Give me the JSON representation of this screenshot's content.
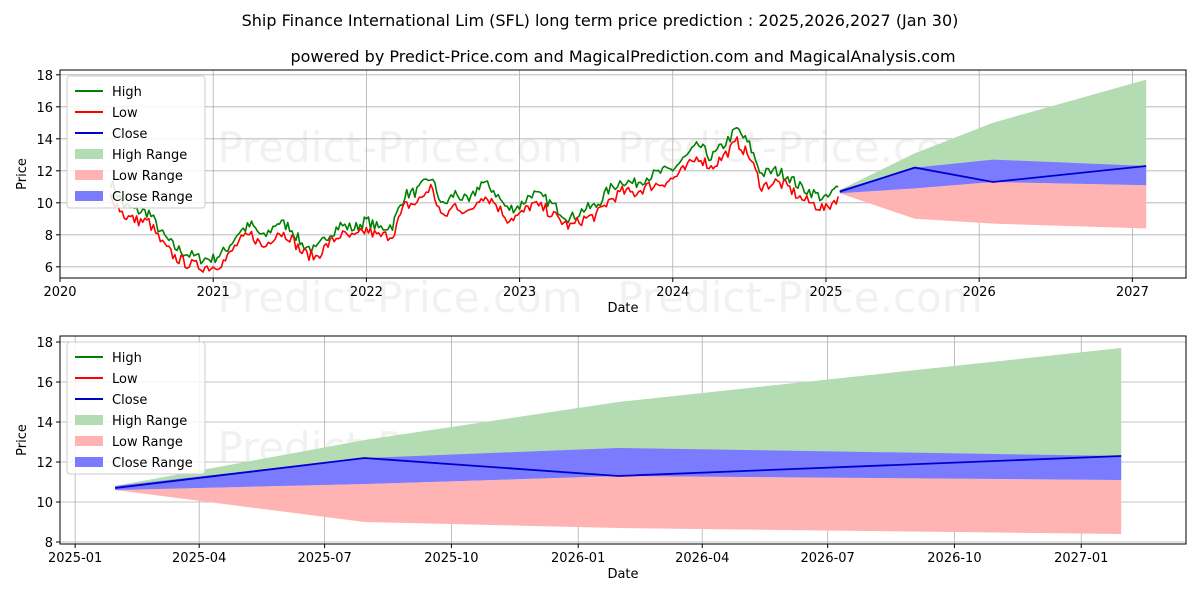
{
  "header": {
    "title": "Ship Finance International Lim (SFL) long term price prediction : 2025,2026,2027 (Jan 30)",
    "subtitle": "powered by Predict-Price.com and MagicalPrediction.com and MagicalAnalysis.com"
  },
  "watermark": "Predict-Price.com",
  "colors": {
    "high": "#008000",
    "low": "#ff0000",
    "close": "#0000cc",
    "high_range": "#b3dcb3",
    "low_range": "#ffb3b3",
    "close_range": "#7b7bff"
  },
  "legend": {
    "entries": [
      "High",
      "Low",
      "Close",
      "High Range",
      "Low Range",
      "Close Range"
    ],
    "placement": "top-left"
  },
  "chart_data": [
    {
      "type": "line",
      "title": "",
      "xlabel": "Date",
      "ylabel": "Price",
      "grid": true,
      "xlim": [
        2020.0,
        2027.35
      ],
      "ylim": [
        5.3,
        18.3
      ],
      "x_ticks": [
        2020,
        2021,
        2022,
        2023,
        2024,
        2025,
        2026,
        2027
      ],
      "x_tick_labels": [
        "2020",
        "2021",
        "2022",
        "2023",
        "2024",
        "2025",
        "2026",
        "2027"
      ],
      "y_ticks": [
        6,
        8,
        10,
        12,
        14,
        16,
        18
      ],
      "y_tick_labels": [
        "6",
        "8",
        "10",
        "12",
        "14",
        "16",
        "18"
      ],
      "history": {
        "x": [
          2020.33,
          2020.42,
          2020.5,
          2020.58,
          2020.67,
          2020.75,
          2020.83,
          2020.92,
          2021.0,
          2021.08,
          2021.17,
          2021.25,
          2021.33,
          2021.42,
          2021.5,
          2021.58,
          2021.67,
          2021.75,
          2021.83,
          2021.92,
          2022.0,
          2022.08,
          2022.17,
          2022.25,
          2022.33,
          2022.42,
          2022.5,
          2022.58,
          2022.67,
          2022.75,
          2022.83,
          2022.92,
          2023.0,
          2023.08,
          2023.17,
          2023.25,
          2023.33,
          2023.42,
          2023.5,
          2023.58,
          2023.67,
          2023.75,
          2023.83,
          2023.92,
          2024.0,
          2024.08,
          2024.17,
          2024.25,
          2024.33,
          2024.42,
          2024.5,
          2024.58,
          2024.67,
          2024.75,
          2024.83,
          2024.92,
          2025.0,
          2025.08
        ],
        "high": [
          11.3,
          9.8,
          9.5,
          9.4,
          8.0,
          7.2,
          6.8,
          6.5,
          6.5,
          7.0,
          8.2,
          8.6,
          7.8,
          8.8,
          8.5,
          7.4,
          7.0,
          8.0,
          8.6,
          8.4,
          8.9,
          8.4,
          8.6,
          10.5,
          10.7,
          11.6,
          9.8,
          10.6,
          10.0,
          11.3,
          10.8,
          9.6,
          9.8,
          10.6,
          10.2,
          9.6,
          9.0,
          9.6,
          9.8,
          10.8,
          11.4,
          11.2,
          11.6,
          11.9,
          12.1,
          12.8,
          13.6,
          12.8,
          13.6,
          14.6,
          13.6,
          11.8,
          12.0,
          11.7,
          11.0,
          10.6,
          10.2,
          11.0
        ],
        "low": [
          10.5,
          9.2,
          8.9,
          8.8,
          7.4,
          6.6,
          6.2,
          6.0,
          6.0,
          6.4,
          7.6,
          8.0,
          7.2,
          8.2,
          7.9,
          6.9,
          6.6,
          7.4,
          8.0,
          7.8,
          8.3,
          7.9,
          8.0,
          9.8,
          10.0,
          11.0,
          9.0,
          9.9,
          9.3,
          10.5,
          10.1,
          9.0,
          9.2,
          9.9,
          9.6,
          9.0,
          8.5,
          9.0,
          9.2,
          10.1,
          10.7,
          10.6,
          11.0,
          11.2,
          11.5,
          12.1,
          12.9,
          12.2,
          12.9,
          13.8,
          12.9,
          11.0,
          11.3,
          11.0,
          10.3,
          9.9,
          9.6,
          10.4
        ]
      },
      "forecast": {
        "x": [
          2025.09,
          2025.58,
          2026.09,
          2027.09
        ],
        "close": [
          10.7,
          12.2,
          11.3,
          12.3
        ],
        "high_range_upper": [
          10.8,
          13.1,
          15.0,
          17.7
        ],
        "low_range_lower": [
          10.6,
          9.0,
          8.7,
          8.4
        ],
        "close_range_upper": [
          10.8,
          12.2,
          12.7,
          12.3
        ],
        "close_range_lower": [
          10.6,
          10.9,
          11.3,
          11.1
        ]
      }
    },
    {
      "type": "line",
      "title": "",
      "xlabel": "Date",
      "ylabel": "Price",
      "grid": true,
      "xlim": [
        "2024-12-21",
        "2027-03-18"
      ],
      "ylim": [
        7.9,
        18.3
      ],
      "x_ticks": [
        "2025-01-01",
        "2025-04-01",
        "2025-07-01",
        "2025-10-01",
        "2026-01-01",
        "2026-04-01",
        "2026-07-01",
        "2026-10-01",
        "2027-01-01"
      ],
      "x_tick_labels": [
        "2025-01",
        "2025-04",
        "2025-07",
        "2025-10",
        "2026-01",
        "2026-04",
        "2026-07",
        "2026-10",
        "2027-01"
      ],
      "y_ticks": [
        8,
        10,
        12,
        14,
        16,
        18
      ],
      "y_tick_labels": [
        "8",
        "10",
        "12",
        "14",
        "16",
        "18"
      ],
      "forecast": {
        "x": [
          "2025-01-30",
          "2025-07-30",
          "2026-01-30",
          "2027-01-30"
        ],
        "close": [
          10.7,
          12.2,
          11.3,
          12.3
        ],
        "high_range_upper": [
          10.8,
          13.1,
          15.0,
          17.7
        ],
        "low_range_lower": [
          10.6,
          9.0,
          8.7,
          8.4
        ],
        "close_range_upper": [
          10.8,
          12.2,
          12.7,
          12.3
        ],
        "close_range_lower": [
          10.6,
          10.9,
          11.3,
          11.1
        ]
      }
    }
  ]
}
